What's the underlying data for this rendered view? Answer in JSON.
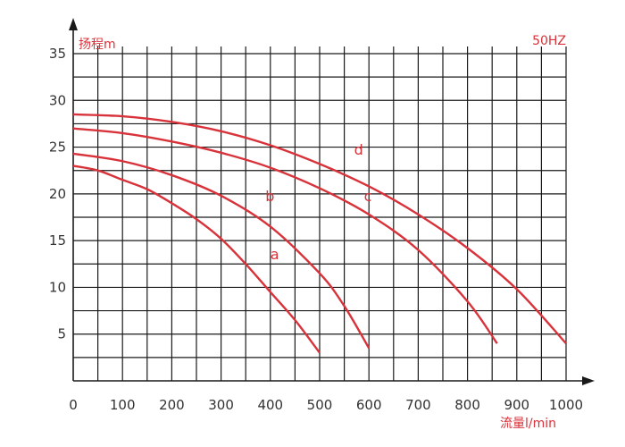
{
  "chart_data": {
    "type": "line",
    "title": "",
    "subtitle": "50HZ",
    "xlabel": "流量l/min",
    "ylabel": "扬程m",
    "xlim": [
      0,
      1000
    ],
    "ylim": [
      0,
      35
    ],
    "grid": true,
    "x_ticks": [
      "0",
      "100",
      "200",
      "300",
      "400",
      "500",
      "600",
      "700",
      "800",
      "900",
      "1000"
    ],
    "y_ticks": [
      "5",
      "10",
      "15",
      "20",
      "25",
      "30",
      "35"
    ],
    "series": [
      {
        "name": "a",
        "x": [
          0,
          50,
          100,
          150,
          200,
          250,
          300,
          350,
          400,
          450,
          500
        ],
        "y": [
          23.0,
          22.5,
          21.5,
          20.5,
          19.0,
          17.3,
          15.2,
          12.5,
          9.5,
          6.5,
          3.0
        ]
      },
      {
        "name": "b",
        "x": [
          0,
          100,
          200,
          300,
          400,
          500,
          550,
          600
        ],
        "y": [
          24.3,
          23.5,
          22.0,
          19.8,
          16.5,
          11.5,
          8.0,
          3.5
        ]
      },
      {
        "name": "c",
        "x": [
          0,
          100,
          200,
          300,
          400,
          500,
          600,
          700,
          800,
          860
        ],
        "y": [
          27.0,
          26.5,
          25.6,
          24.4,
          22.8,
          20.6,
          17.8,
          14.0,
          8.5,
          4.0
        ]
      },
      {
        "name": "d",
        "x": [
          0,
          100,
          200,
          300,
          400,
          500,
          600,
          700,
          800,
          900,
          1000
        ],
        "y": [
          28.5,
          28.3,
          27.7,
          26.7,
          25.2,
          23.2,
          20.8,
          17.8,
          14.2,
          9.8,
          4.0
        ]
      }
    ]
  },
  "colors": {
    "curve": "#d8323a",
    "grid": "#1a1a1a",
    "text": "#333333"
  }
}
